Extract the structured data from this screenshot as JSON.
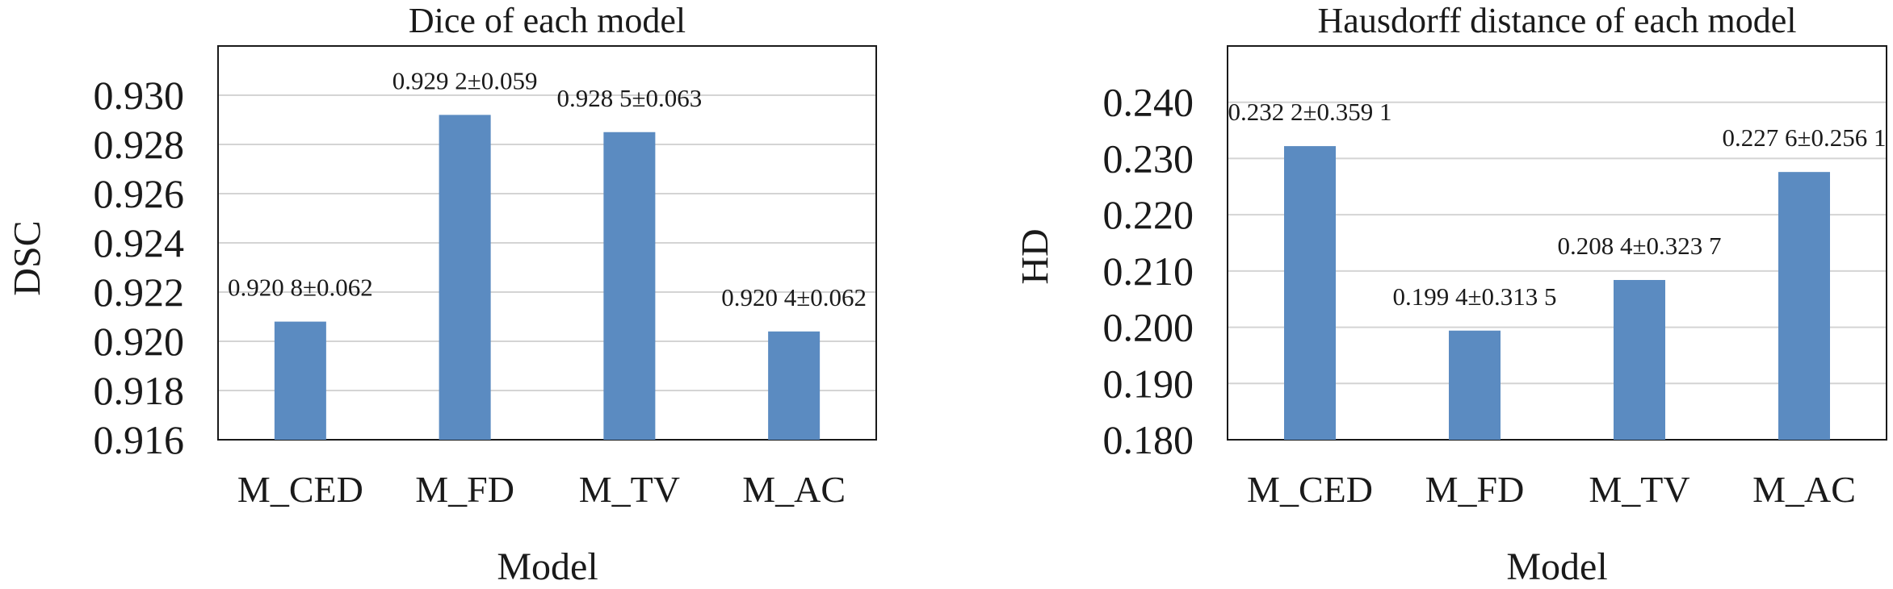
{
  "chart_data": [
    {
      "type": "bar",
      "title": "Dice of each model",
      "xlabel": "Model",
      "ylabel": "DSC",
      "categories": [
        "M_CED",
        "M_FD",
        "M_TV",
        "M_AC"
      ],
      "values": [
        0.9208,
        0.9292,
        0.9285,
        0.9204
      ],
      "data_labels": [
        "0.920 8±0.062",
        "0.929 2±0.059",
        "0.928 5±0.063",
        "0.920 4±0.062"
      ],
      "ylim": [
        0.916,
        0.932
      ],
      "yticks": [
        0.916,
        0.918,
        0.92,
        0.922,
        0.924,
        0.926,
        0.928,
        0.93
      ],
      "ytick_labels": [
        "0.916",
        "0.918",
        "0.920",
        "0.922",
        "0.924",
        "0.926",
        "0.928",
        "0.930"
      ],
      "bar_color": "#5b8bc1",
      "grid": true
    },
    {
      "type": "bar",
      "title": "Hausdorff distance of each model",
      "xlabel": "Model",
      "ylabel": "HD",
      "categories": [
        "M_CED",
        "M_FD",
        "M_TV",
        "M_AC"
      ],
      "values": [
        0.2322,
        0.1994,
        0.2084,
        0.2276
      ],
      "data_labels": [
        "0.232 2±0.359 1",
        "0.199 4±0.313 5",
        "0.208 4±0.323 7",
        "0.227 6±0.256 1"
      ],
      "ylim": [
        0.18,
        0.25
      ],
      "yticks": [
        0.18,
        0.19,
        0.2,
        0.21,
        0.22,
        0.23,
        0.24
      ],
      "ytick_labels": [
        "0.180",
        "0.190",
        "0.200",
        "0.210",
        "0.220",
        "0.230",
        "0.240"
      ],
      "bar_color": "#5b8bc1",
      "grid": true
    }
  ]
}
